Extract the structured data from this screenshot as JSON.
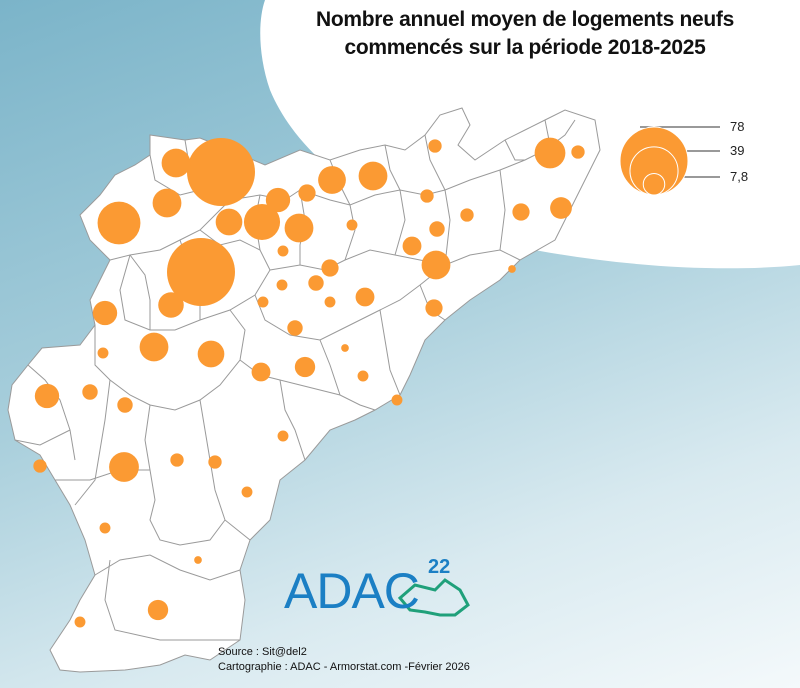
{
  "title_line1": "Nombre annuel moyen de logements neufs",
  "title_line2": "commencés sur la période 2018-2025",
  "legend": {
    "items": [
      {
        "value": 78,
        "label": "78"
      },
      {
        "value": 39,
        "label": "39"
      },
      {
        "value": 7.8,
        "label": "7,8"
      }
    ]
  },
  "source": "Source : Sit@del2",
  "credits": "Cartographie : ADAC - Armorstat.com -Février 2026",
  "logo": {
    "text": "ADAC",
    "superscript": "22"
  },
  "colors": {
    "symbol": "#fb9a33",
    "commune_fill": "#ffffff",
    "border": "#9a9a9a",
    "sea": "#7bb4c9"
  },
  "communes_values": [
    78,
    78,
    31,
    14,
    14,
    22,
    12,
    16,
    14,
    13,
    10,
    5,
    3,
    12,
    11,
    6,
    10,
    7,
    14,
    5,
    6,
    3,
    4,
    10,
    6,
    4,
    8,
    3,
    2,
    2,
    3,
    3,
    15,
    14,
    5,
    3,
    4,
    2,
    2,
    2,
    2,
    2,
    1,
    7,
    2,
    2,
    3,
    2,
    1,
    1,
    14,
    4,
    4,
    2,
    2,
    5,
    4,
    2,
    4,
    2,
    1,
    1,
    1
  ]
}
